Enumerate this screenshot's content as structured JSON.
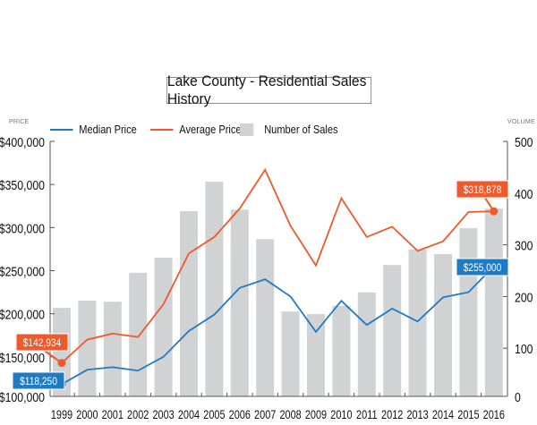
{
  "chart_data": {
    "type": "bar",
    "title": "Lake County - Residential Sales History",
    "left_axis_label": "PRICE",
    "right_axis_label": "VOLUME",
    "categories": [
      "1999",
      "2000",
      "2001",
      "2002",
      "2003",
      "2004",
      "2005",
      "2006",
      "2007",
      "2008",
      "2009",
      "2010",
      "2011",
      "2012",
      "2013",
      "2014",
      "2015",
      "2016"
    ],
    "series": [
      {
        "name": "Median Price",
        "type": "line",
        "axis": "left",
        "color": "#1f7bc4",
        "values": [
          118250,
          135000,
          138000,
          134000,
          150000,
          180000,
          199000,
          230000,
          240000,
          220000,
          179000,
          215000,
          187000,
          206000,
          191000,
          219000,
          225000,
          255000
        ]
      },
      {
        "name": "Average Price",
        "type": "line",
        "axis": "left",
        "color": "#ee5a2c",
        "values": [
          142934,
          170000,
          177000,
          173000,
          211000,
          270000,
          289000,
          322000,
          367000,
          302000,
          256000,
          334000,
          289000,
          301000,
          273000,
          284000,
          318000,
          318878
        ]
      },
      {
        "name": "Number of Sales",
        "type": "bar",
        "axis": "right",
        "color": "#d1d2d4",
        "values": [
          178,
          192,
          190,
          246,
          275,
          365,
          422,
          368,
          311,
          171,
          166,
          182,
          208,
          261,
          291,
          282,
          332,
          370
        ]
      }
    ],
    "left_axis": {
      "ylim": [
        100000,
        400000
      ],
      "ticks": [
        "$100,000",
        "$150,000",
        "$200,000",
        "$250,000",
        "$300,000",
        "$350,000",
        "$400,000"
      ],
      "tick_values": [
        100000,
        150000,
        200000,
        250000,
        300000,
        350000,
        400000
      ]
    },
    "right_axis": {
      "ylim": [
        0,
        500
      ],
      "ticks": [
        "0",
        "100",
        "200",
        "300",
        "400",
        "500"
      ],
      "tick_values": [
        0,
        100,
        200,
        300,
        400,
        500
      ]
    },
    "annotations": [
      {
        "series": "Average Price",
        "category": "1999",
        "text": "$142,934",
        "color": "#ee5a2c"
      },
      {
        "series": "Median Price",
        "category": "1999",
        "text": "$118,250",
        "color": "#1f7bc4"
      },
      {
        "series": "Average Price",
        "category": "2016",
        "text": "$318,878",
        "color": "#ee5a2c"
      },
      {
        "series": "Median Price",
        "category": "2016",
        "text": "$255,000",
        "color": "#1f7bc4"
      }
    ],
    "legend_position": "top",
    "grid": false
  }
}
